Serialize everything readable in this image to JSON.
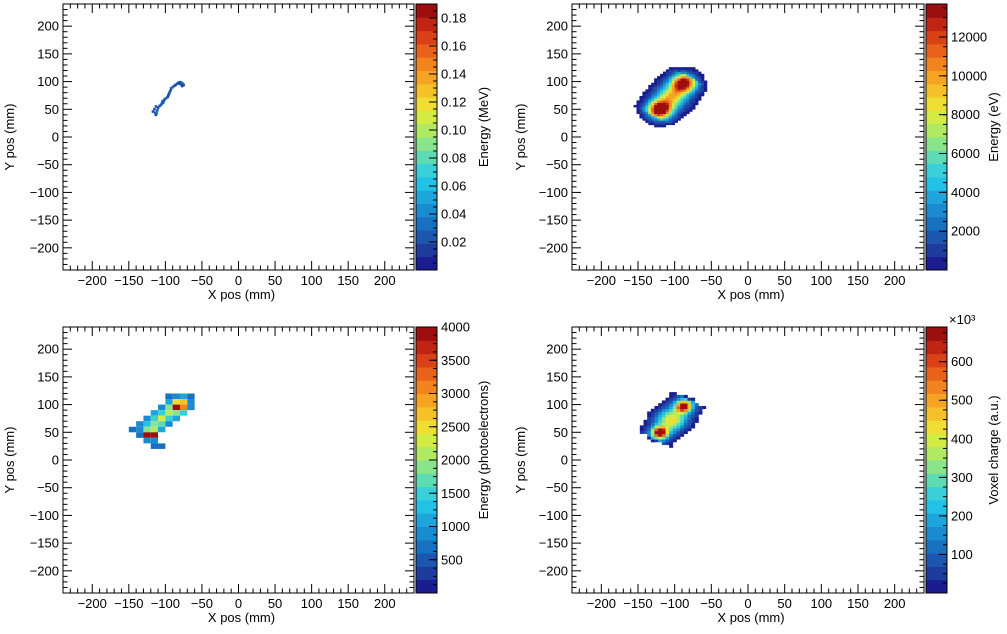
{
  "chart_data": [
    {
      "type": "heatmap",
      "xlabel": "X pos (mm)",
      "ylabel": "Y pos (mm)",
      "zlabel": "Energy (MeV)",
      "xlim": [
        -240,
        240
      ],
      "ylim": [
        -240,
        240
      ],
      "xticks": [
        -200,
        -150,
        -100,
        -50,
        0,
        50,
        100,
        150,
        200
      ],
      "yticks": [
        -200,
        -150,
        -100,
        -50,
        0,
        50,
        100,
        150,
        200
      ],
      "zlim": [
        0,
        0.19
      ],
      "zticks": [
        0.02,
        0.04,
        0.06,
        0.08,
        0.1,
        0.12,
        0.14,
        0.16,
        0.18
      ],
      "ztick_labels": [
        "0.02",
        "0.04",
        "0.06",
        "0.08",
        "0.10",
        "0.12",
        "0.14",
        "0.16",
        "0.18"
      ],
      "exponent_label": "",
      "cells": [
        [
          -114,
          44,
          0.02
        ],
        [
          -113,
          40,
          0.015
        ],
        [
          -112,
          43,
          0.03
        ],
        [
          -115,
          50,
          0.025
        ],
        [
          -111,
          48,
          0.02
        ],
        [
          -110,
          53,
          0.018
        ],
        [
          -108,
          56,
          0.02
        ],
        [
          -106,
          58,
          0.02
        ],
        [
          -105,
          60,
          0.035
        ],
        [
          -103,
          62,
          0.02
        ],
        [
          -104,
          64,
          0.025
        ],
        [
          -102,
          66,
          0.02
        ],
        [
          -101,
          68,
          0.02
        ],
        [
          -99,
          70,
          0.03
        ],
        [
          -97,
          72,
          0.02
        ],
        [
          -96,
          75,
          0.018
        ],
        [
          -95,
          78,
          0.02
        ],
        [
          -94,
          81,
          0.025
        ],
        [
          -93,
          84,
          0.02
        ],
        [
          -92,
          88,
          0.02
        ],
        [
          -90,
          90,
          0.03
        ],
        [
          -88,
          92,
          0.02
        ],
        [
          -86,
          94,
          0.018
        ],
        [
          -84,
          96,
          0.02
        ],
        [
          -82,
          98,
          0.025
        ],
        [
          -80,
          99,
          0.02
        ],
        [
          -78,
          98,
          0.02
        ],
        [
          -76,
          96,
          0.03
        ],
        [
          -75,
          94,
          0.02
        ],
        [
          -77,
          92,
          0.015
        ],
        [
          -79,
          95,
          0.02
        ],
        [
          -81,
          97,
          0.018
        ],
        [
          -117,
          46,
          0.02
        ],
        [
          -113,
          55,
          0.02
        ]
      ]
    },
    {
      "type": "heatmap",
      "xlabel": "X pos (mm)",
      "ylabel": "Y pos (mm)",
      "zlabel": "Energy (eV)",
      "xlim": [
        -240,
        240
      ],
      "ylim": [
        -240,
        240
      ],
      "xticks": [
        -200,
        -150,
        -100,
        -50,
        0,
        50,
        100,
        150,
        200
      ],
      "yticks": [
        -200,
        -150,
        -100,
        -50,
        0,
        50,
        100,
        150,
        200
      ],
      "zlim": [
        0,
        13700
      ],
      "zticks": [
        2000,
        4000,
        6000,
        8000,
        10000,
        12000
      ],
      "ztick_labels": [
        "2000",
        "4000",
        "6000",
        "8000",
        "10000",
        "12000"
      ],
      "exponent_label": "",
      "blobs": [
        {
          "x": -120,
          "y": 50,
          "peak": 13500,
          "sigma": 11
        },
        {
          "x": -88,
          "y": 97,
          "peak": 12500,
          "sigma": 11
        },
        {
          "x": -104,
          "y": 73,
          "peak": 6000,
          "sigma": 14
        }
      ],
      "grid_step": 4,
      "threshold": 250
    },
    {
      "type": "heatmap",
      "xlabel": "X pos (mm)",
      "ylabel": "Y pos (mm)",
      "zlabel": "Energy (photoelectrons)",
      "xlim": [
        -240,
        240
      ],
      "ylim": [
        -240,
        240
      ],
      "xticks": [
        -200,
        -150,
        -100,
        -50,
        0,
        50,
        100,
        150,
        200
      ],
      "yticks": [
        -200,
        -150,
        -100,
        -50,
        0,
        50,
        100,
        150,
        200
      ],
      "zlim": [
        0,
        4000
      ],
      "zticks": [
        500,
        1000,
        1500,
        2000,
        2500,
        3000,
        3500,
        4000
      ],
      "ztick_labels": [
        "500",
        "1000",
        "1500",
        "2000",
        "2500",
        "3000",
        "3500",
        "4000"
      ],
      "exponent_label": "",
      "bin_size": 10,
      "cells": [
        [
          -145,
          55,
          600
        ],
        [
          -135,
          65,
          800
        ],
        [
          -135,
          55,
          900
        ],
        [
          -135,
          45,
          700
        ],
        [
          -125,
          75,
          900
        ],
        [
          -125,
          65,
          1200
        ],
        [
          -125,
          55,
          1800
        ],
        [
          -125,
          45,
          3900
        ],
        [
          -125,
          35,
          800
        ],
        [
          -115,
          85,
          1000
        ],
        [
          -115,
          75,
          1400
        ],
        [
          -115,
          65,
          1900
        ],
        [
          -115,
          55,
          2100
        ],
        [
          -115,
          45,
          3800
        ],
        [
          -115,
          35,
          900
        ],
        [
          -115,
          25,
          600
        ],
        [
          -105,
          95,
          900
        ],
        [
          -105,
          85,
          1500
        ],
        [
          -105,
          75,
          2200
        ],
        [
          -105,
          65,
          1600
        ],
        [
          -105,
          55,
          1100
        ],
        [
          -105,
          25,
          700
        ],
        [
          -95,
          105,
          1000
        ],
        [
          -95,
          95,
          1800
        ],
        [
          -95,
          85,
          2000
        ],
        [
          -95,
          75,
          1500
        ],
        [
          -95,
          65,
          900
        ],
        [
          -85,
          115,
          800
        ],
        [
          -85,
          105,
          2400
        ],
        [
          -85,
          95,
          4000
        ],
        [
          -85,
          85,
          1900
        ],
        [
          -85,
          75,
          1000
        ],
        [
          -75,
          115,
          1100
        ],
        [
          -75,
          105,
          2600
        ],
        [
          -75,
          95,
          3000
        ],
        [
          -75,
          85,
          1400
        ],
        [
          -65,
          105,
          900
        ],
        [
          -65,
          95,
          800
        ],
        [
          -95,
          115,
          700
        ],
        [
          -65,
          115,
          600
        ]
      ]
    },
    {
      "type": "heatmap",
      "xlabel": "X pos (mm)",
      "ylabel": "Y pos (mm)",
      "zlabel": "Voxel charge (a.u.)",
      "xlim": [
        -240,
        240
      ],
      "ylim": [
        -240,
        240
      ],
      "xticks": [
        -200,
        -150,
        -100,
        -50,
        0,
        50,
        100,
        150,
        200
      ],
      "yticks": [
        -200,
        -150,
        -100,
        -50,
        0,
        50,
        100,
        150,
        200
      ],
      "zlim": [
        0,
        690
      ],
      "zticks": [
        100,
        200,
        300,
        400,
        500,
        600
      ],
      "ztick_labels": [
        "100",
        "200",
        "300",
        "400",
        "500",
        "600"
      ],
      "exponent_label": "×10³",
      "blobs": [
        {
          "x": -120,
          "y": 50,
          "peak": 680,
          "sigma": 7
        },
        {
          "x": -88,
          "y": 97,
          "peak": 640,
          "sigma": 7
        },
        {
          "x": -104,
          "y": 73,
          "peak": 300,
          "sigma": 13
        }
      ],
      "grid_step": 5,
      "threshold": 18
    }
  ]
}
